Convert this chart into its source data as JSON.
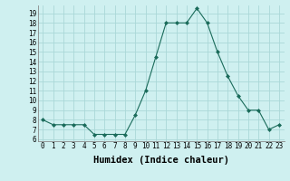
{
  "x": [
    0,
    1,
    2,
    3,
    4,
    5,
    6,
    7,
    8,
    9,
    10,
    11,
    12,
    13,
    14,
    15,
    16,
    17,
    18,
    19,
    20,
    21,
    22,
    23
  ],
  "y": [
    8,
    7.5,
    7.5,
    7.5,
    7.5,
    6.5,
    6.5,
    6.5,
    6.5,
    8.5,
    11,
    14.5,
    18,
    18,
    18,
    19.5,
    18,
    15,
    12.5,
    10.5,
    9,
    9,
    7,
    7.5
  ],
  "line_color": "#1a6b5a",
  "marker": "D",
  "marker_size": 2,
  "bg_color": "#cff0f0",
  "grid_color": "#aad8d8",
  "xlabel": "Humidex (Indice chaleur)",
  "ylim": [
    5.8,
    19.8
  ],
  "xlim": [
    -0.5,
    23.5
  ],
  "yticks": [
    6,
    7,
    8,
    9,
    10,
    11,
    12,
    13,
    14,
    15,
    16,
    17,
    18,
    19
  ],
  "xticks": [
    0,
    1,
    2,
    3,
    4,
    5,
    6,
    7,
    8,
    9,
    10,
    11,
    12,
    13,
    14,
    15,
    16,
    17,
    18,
    19,
    20,
    21,
    22,
    23
  ],
  "tick_fontsize": 5.5,
  "label_fontsize": 7.5
}
